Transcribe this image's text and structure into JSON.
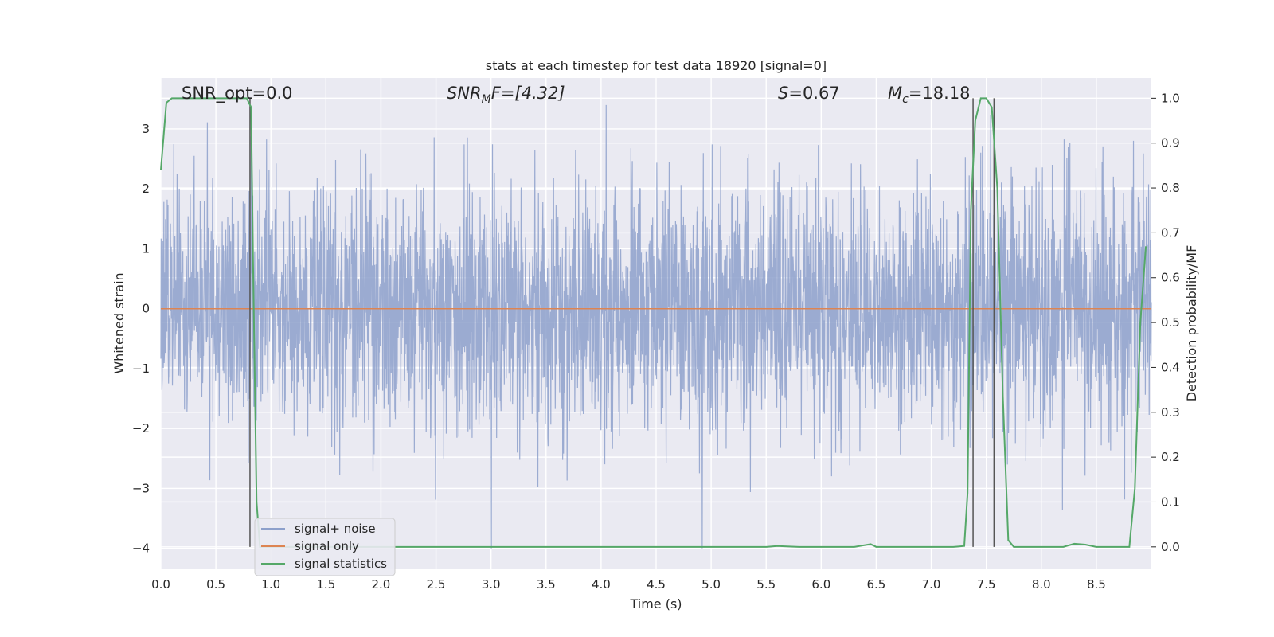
{
  "chart_data": {
    "type": "line",
    "title": "stats at each timestep for test data 18920 [signal=0]",
    "xlabel": "Time (s)",
    "ylabel_left": "Whitened strain",
    "ylabel_right": "Detection probability/MF",
    "xlim": [
      0.0,
      9.0
    ],
    "ylim_left": [
      -4.35,
      3.85
    ],
    "ylim_right": [
      -0.05,
      1.045
    ],
    "x_ticks": [
      "0.0",
      "0.5",
      "1.0",
      "1.5",
      "2.0",
      "2.5",
      "3.0",
      "3.5",
      "4.0",
      "4.5",
      "5.0",
      "5.5",
      "6.0",
      "6.5",
      "7.0",
      "7.5",
      "8.0",
      "8.5"
    ],
    "y_ticks_left": [
      "3",
      "2",
      "1",
      "0",
      "−1",
      "−2",
      "−3",
      "−4"
    ],
    "y_ticks_right": [
      "1.0",
      "0.9",
      "0.8",
      "0.7",
      "0.6",
      "0.5",
      "0.4",
      "0.3",
      "0.2",
      "0.1",
      "0.0"
    ],
    "grid": true,
    "annotations": {
      "snr_opt": "SNR_opt=0.0",
      "snr_mf_pre": "SNR",
      "snr_mf_sub": "M",
      "snr_mf_post": "F=[4.32]",
      "s_pre": "S",
      "s_post": "=0.67",
      "mc_pre": "M",
      "mc_sub": "c",
      "mc_post": "=18.18"
    },
    "legend": {
      "placement": "lower-left",
      "entries": [
        "signal+ noise",
        "signal only",
        "signal statistics"
      ]
    },
    "series": [
      {
        "name": "signal+ noise",
        "axis": "left",
        "kind": "noise",
        "amplitude_sigma": 1.0,
        "color": "#8da0cb"
      },
      {
        "name": "signal only",
        "axis": "left",
        "x": [
          0.0,
          9.0
        ],
        "y": [
          0.0,
          0.0
        ],
        "color": "#dd8452"
      },
      {
        "name": "signal statistics",
        "axis": "right",
        "color": "#55a868",
        "x": [
          0.0,
          0.05,
          0.1,
          0.15,
          0.2,
          0.3,
          0.5,
          0.7,
          0.78,
          0.8,
          0.82,
          0.84,
          0.87,
          0.9,
          1.0,
          2.0,
          3.0,
          4.0,
          5.0,
          5.5,
          5.6,
          5.8,
          6.0,
          6.3,
          6.45,
          6.5,
          7.0,
          7.2,
          7.3,
          7.33,
          7.36,
          7.4,
          7.45,
          7.5,
          7.55,
          7.6,
          7.65,
          7.7,
          7.75,
          7.8,
          8.0,
          8.2,
          8.3,
          8.4,
          8.5,
          8.6,
          8.8,
          8.85,
          8.9,
          8.95
        ],
        "y": [
          0.84,
          0.99,
          1.0,
          1.0,
          1.0,
          1.0,
          1.0,
          1.0,
          1.0,
          0.99,
          0.98,
          0.6,
          0.1,
          0.0,
          0.0,
          0.0,
          0.0,
          0.0,
          0.0,
          0.0,
          0.002,
          0.0,
          0.0,
          0.0,
          0.006,
          0.0,
          0.0,
          0.0,
          0.002,
          0.12,
          0.75,
          0.95,
          1.0,
          1.0,
          0.98,
          0.8,
          0.34,
          0.015,
          0.0,
          0.0,
          0.0,
          0.0,
          0.007,
          0.005,
          0.0,
          0.0,
          0.0,
          0.13,
          0.5,
          0.67
        ]
      }
    ],
    "vertical_markers": [
      0.81,
      7.38,
      7.57
    ]
  }
}
